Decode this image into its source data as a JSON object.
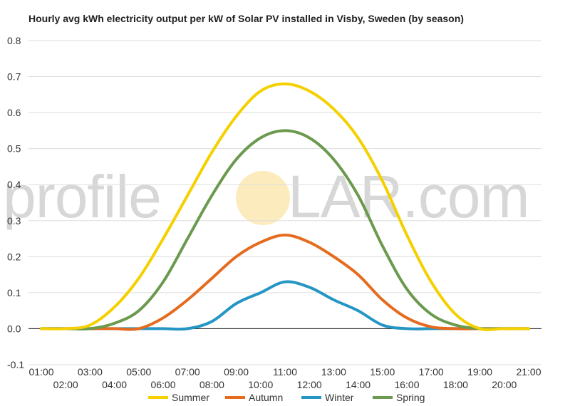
{
  "chart_data": {
    "type": "line",
    "title": "Hourly avg kWh electricity output per kW of Solar PV installed in Visby, Sweden (by season)",
    "xlabel": "",
    "ylabel": "",
    "ylim": [
      -0.1,
      0.8
    ],
    "yticks": [
      "-0.1",
      "0.0",
      "0.1",
      "0.2",
      "0.3",
      "0.4",
      "0.5",
      "0.6",
      "0.7",
      "0.8"
    ],
    "categories": [
      "01:00",
      "02:00",
      "03:00",
      "04:00",
      "05:00",
      "06:00",
      "07:00",
      "08:00",
      "09:00",
      "10:00",
      "11:00",
      "12:00",
      "13:00",
      "14:00",
      "15:00",
      "16:00",
      "17:00",
      "18:00",
      "19:00",
      "20:00",
      "21:00"
    ],
    "grid": true,
    "legend": "bottom",
    "series": [
      {
        "name": "Summer",
        "color": "#f5d000",
        "values": [
          0.0,
          0.0,
          0.01,
          0.06,
          0.14,
          0.25,
          0.37,
          0.49,
          0.59,
          0.66,
          0.68,
          0.66,
          0.61,
          0.53,
          0.41,
          0.26,
          0.13,
          0.04,
          0.0,
          0.0,
          0.0
        ]
      },
      {
        "name": "Autumn",
        "color": "#e56b1f",
        "values": [
          0.0,
          0.0,
          0.0,
          0.0,
          0.0,
          0.03,
          0.08,
          0.14,
          0.2,
          0.24,
          0.26,
          0.24,
          0.2,
          0.15,
          0.08,
          0.03,
          0.005,
          0.0,
          0.0,
          0.0,
          0.0
        ]
      },
      {
        "name": "Winter",
        "color": "#2596c4",
        "values": [
          0.0,
          0.0,
          0.0,
          0.0,
          0.0,
          0.0,
          0.0,
          0.02,
          0.07,
          0.1,
          0.13,
          0.115,
          0.08,
          0.05,
          0.01,
          0.0,
          0.0,
          0.0,
          0.0,
          0.0,
          0.0
        ]
      },
      {
        "name": "Spring",
        "color": "#6b9a4f",
        "values": [
          0.0,
          0.0,
          0.0,
          0.015,
          0.05,
          0.13,
          0.25,
          0.37,
          0.47,
          0.53,
          0.55,
          0.53,
          0.47,
          0.37,
          0.23,
          0.11,
          0.04,
          0.01,
          0.0,
          0.0,
          0.0
        ]
      }
    ]
  },
  "watermark": {
    "left": "profile",
    "right": "LAR.com"
  }
}
